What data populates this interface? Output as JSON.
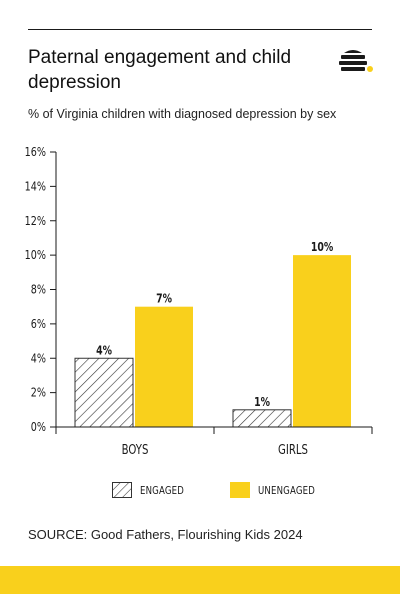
{
  "header": {
    "title": "Paternal engagement and child depression",
    "subtitle": "% of Virginia children with diagnosed depression by sex",
    "logo_icon": "beehive-icon"
  },
  "legend": {
    "engaged_label": "ENGAGED",
    "unengaged_label": "UNENGAGED"
  },
  "source": "SOURCE: Good Fathers, Flourishing Kids 2024",
  "colors": {
    "accent_yellow": "#f9d01c",
    "text": "#1a1a1a",
    "hatch_stroke": "#333333"
  },
  "chart_data": {
    "type": "bar",
    "categories": [
      "BOYS",
      "GIRLS"
    ],
    "series": [
      {
        "name": "ENGAGED",
        "values": [
          4,
          1
        ],
        "labels": [
          "4%",
          "1%"
        ],
        "fill": "hatched"
      },
      {
        "name": "UNENGAGED",
        "values": [
          7,
          10
        ],
        "labels": [
          "7%",
          "10%"
        ],
        "fill": "#f9d01c"
      }
    ],
    "yticks": [
      0,
      2,
      4,
      6,
      8,
      10,
      12,
      14,
      16
    ],
    "ytick_labels": [
      "0%",
      "2%",
      "4%",
      "6%",
      "8%",
      "10%",
      "12%",
      "14%",
      "16%"
    ],
    "ylim": [
      0,
      16
    ],
    "grid": false,
    "legend_position": "bottom"
  }
}
